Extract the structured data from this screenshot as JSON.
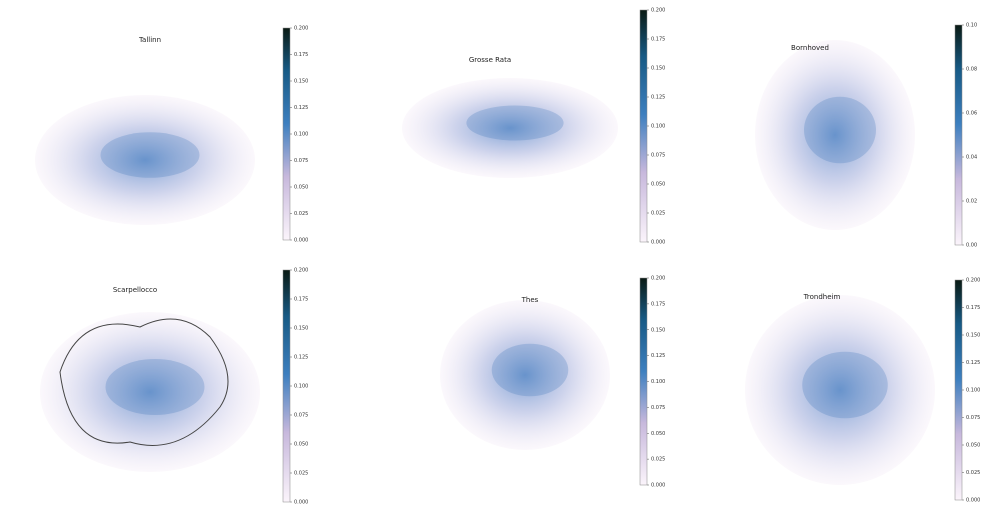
{
  "chart_data": [
    {
      "type": "heatmap",
      "title": "Tallinn",
      "ylim": [
        0,
        0.2
      ],
      "yticks": [
        {
          "value": 0,
          "label": "0.000"
        },
        {
          "value": 0.025,
          "label": "0.025"
        },
        {
          "value": 0.05,
          "label": "0.050"
        },
        {
          "value": 0.075,
          "label": "0.075"
        },
        {
          "value": 0.1,
          "label": "0.100"
        },
        {
          "value": 0.125,
          "label": "0.125"
        },
        {
          "value": 0.15,
          "label": "0.150"
        },
        {
          "value": 0.175,
          "label": "0.175"
        },
        {
          "value": 0.2,
          "label": "0.200"
        }
      ]
    },
    {
      "type": "heatmap",
      "title": "Grosse Rata",
      "ylim": [
        0,
        0.2
      ],
      "yticks": [
        {
          "value": 0,
          "label": "0.000"
        },
        {
          "value": 0.025,
          "label": "0.025"
        },
        {
          "value": 0.05,
          "label": "0.050"
        },
        {
          "value": 0.075,
          "label": "0.075"
        },
        {
          "value": 0.1,
          "label": "0.100"
        },
        {
          "value": 0.125,
          "label": "0.125"
        },
        {
          "value": 0.15,
          "label": "0.150"
        },
        {
          "value": 0.175,
          "label": "0.175"
        },
        {
          "value": 0.2,
          "label": "0.200"
        }
      ]
    },
    {
      "type": "heatmap",
      "title": "Bornhoved",
      "ylim": [
        0,
        0.1
      ],
      "yticks": [
        {
          "value": 0,
          "label": "0.00"
        },
        {
          "value": 0.02,
          "label": "0.02"
        },
        {
          "value": 0.04,
          "label": "0.04"
        },
        {
          "value": 0.06,
          "label": "0.06"
        },
        {
          "value": 0.08,
          "label": "0.08"
        },
        {
          "value": 0.1,
          "label": "0.10"
        }
      ]
    },
    {
      "type": "heatmap",
      "title": "Scarpellocco",
      "ylim": [
        0,
        0.2
      ],
      "yticks": [
        {
          "value": 0,
          "label": "0.000"
        },
        {
          "value": 0.025,
          "label": "0.025"
        },
        {
          "value": 0.05,
          "label": "0.050"
        },
        {
          "value": 0.075,
          "label": "0.075"
        },
        {
          "value": 0.1,
          "label": "0.100"
        },
        {
          "value": 0.125,
          "label": "0.125"
        },
        {
          "value": 0.15,
          "label": "0.150"
        },
        {
          "value": 0.175,
          "label": "0.175"
        },
        {
          "value": 0.2,
          "label": "0.200"
        }
      ]
    },
    {
      "type": "heatmap",
      "title": "Thes",
      "ylim": [
        0,
        0.2
      ],
      "yticks": [
        {
          "value": 0,
          "label": "0.000"
        },
        {
          "value": 0.025,
          "label": "0.025"
        },
        {
          "value": 0.05,
          "label": "0.050"
        },
        {
          "value": 0.075,
          "label": "0.075"
        },
        {
          "value": 0.1,
          "label": "0.100"
        },
        {
          "value": 0.125,
          "label": "0.125"
        },
        {
          "value": 0.15,
          "label": "0.150"
        },
        {
          "value": 0.175,
          "label": "0.175"
        },
        {
          "value": 0.2,
          "label": "0.200"
        }
      ]
    },
    {
      "type": "heatmap",
      "title": "Trondheim",
      "ylim": [
        0,
        0.2
      ],
      "yticks": [
        {
          "value": 0,
          "label": "0.000"
        },
        {
          "value": 0.025,
          "label": "0.025"
        },
        {
          "value": 0.05,
          "label": "0.050"
        },
        {
          "value": 0.075,
          "label": "0.075"
        },
        {
          "value": 0.1,
          "label": "0.100"
        },
        {
          "value": 0.125,
          "label": "0.125"
        },
        {
          "value": 0.15,
          "label": "0.150"
        },
        {
          "value": 0.175,
          "label": "0.175"
        },
        {
          "value": 0.2,
          "label": "0.200"
        }
      ]
    }
  ]
}
